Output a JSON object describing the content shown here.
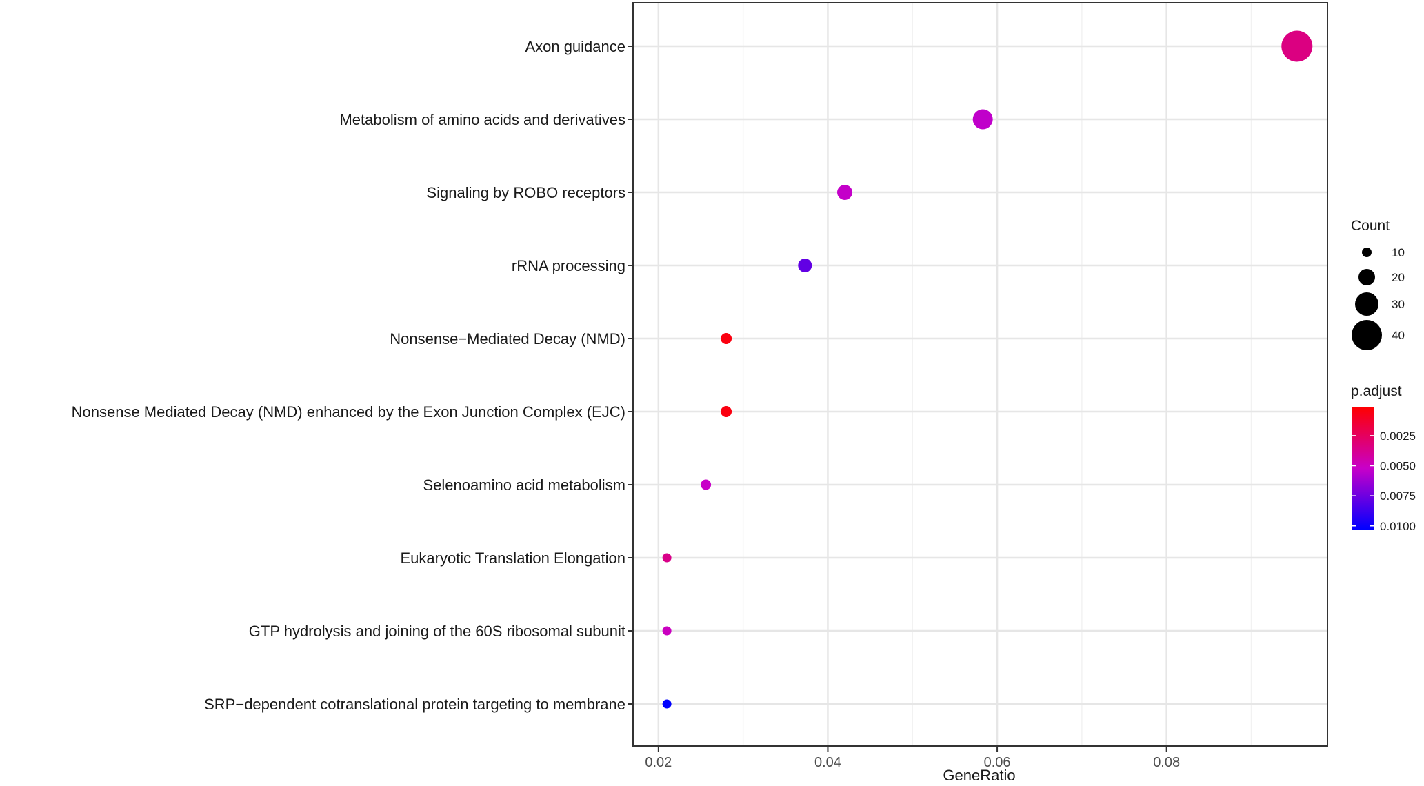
{
  "chart_data": {
    "type": "scatter",
    "xlabel": "GeneRatio",
    "ylabel": "",
    "xlim": [
      0.017,
      0.099
    ],
    "x_ticks": [
      "0.02",
      "0.04",
      "0.06",
      "0.08"
    ],
    "grid": true,
    "legend_position": "right",
    "categories": [
      "Axon guidance",
      "Metabolism of amino acids and derivatives",
      "Signaling by ROBO receptors",
      "rRNA processing",
      "Nonsense−Mediated Decay (NMD)",
      "Nonsense Mediated Decay (NMD) enhanced by the Exon Junction Complex (EJC)",
      "Selenoamino acid metabolism",
      "Eukaryotic Translation Elongation",
      "GTP hydrolysis and joining of the 60S ribosomal subunit",
      "SRP−dependent cotranslational protein targeting to membrane"
    ],
    "points": [
      {
        "category": "Axon guidance",
        "gene_ratio": 0.0954,
        "count": 41,
        "p_adjust": 0.0034
      },
      {
        "category": "Metabolism of amino acids and derivatives",
        "gene_ratio": 0.0583,
        "count": 25,
        "p_adjust": 0.0054
      },
      {
        "category": "Signaling by ROBO receptors",
        "gene_ratio": 0.042,
        "count": 18,
        "p_adjust": 0.0053
      },
      {
        "category": "rRNA processing",
        "gene_ratio": 0.0373,
        "count": 16,
        "p_adjust": 0.0078
      },
      {
        "category": "Nonsense−Mediated Decay (NMD)",
        "gene_ratio": 0.028,
        "count": 12,
        "p_adjust": 0.0005
      },
      {
        "category": "Nonsense Mediated Decay (NMD) enhanced by the Exon Junction Complex (EJC)",
        "gene_ratio": 0.028,
        "count": 12,
        "p_adjust": 0.0005
      },
      {
        "category": "Selenoamino acid metabolism",
        "gene_ratio": 0.0256,
        "count": 11,
        "p_adjust": 0.0052
      },
      {
        "category": "Eukaryotic Translation Elongation",
        "gene_ratio": 0.021,
        "count": 9,
        "p_adjust": 0.0036
      },
      {
        "category": "GTP hydrolysis and joining of the 60S ribosomal subunit",
        "gene_ratio": 0.021,
        "count": 9,
        "p_adjust": 0.005
      },
      {
        "category": "SRP−dependent cotranslational protein targeting to membrane",
        "gene_ratio": 0.021,
        "count": 9,
        "p_adjust": 0.0103
      }
    ],
    "size_legend": {
      "title": "Count",
      "values": [
        10,
        20,
        30,
        40
      ],
      "labels": [
        "10",
        "20",
        "30",
        "40"
      ]
    },
    "color_legend": {
      "title": "p.adjust",
      "range": [
        0.0001,
        0.0103
      ],
      "ticks": [
        0.0025,
        0.005,
        0.0075,
        0.01
      ],
      "labels": [
        "0.0025",
        "0.0050",
        "0.0075",
        "0.0100"
      ],
      "low_color": "#ff0000",
      "high_color": "#0000ff"
    }
  }
}
